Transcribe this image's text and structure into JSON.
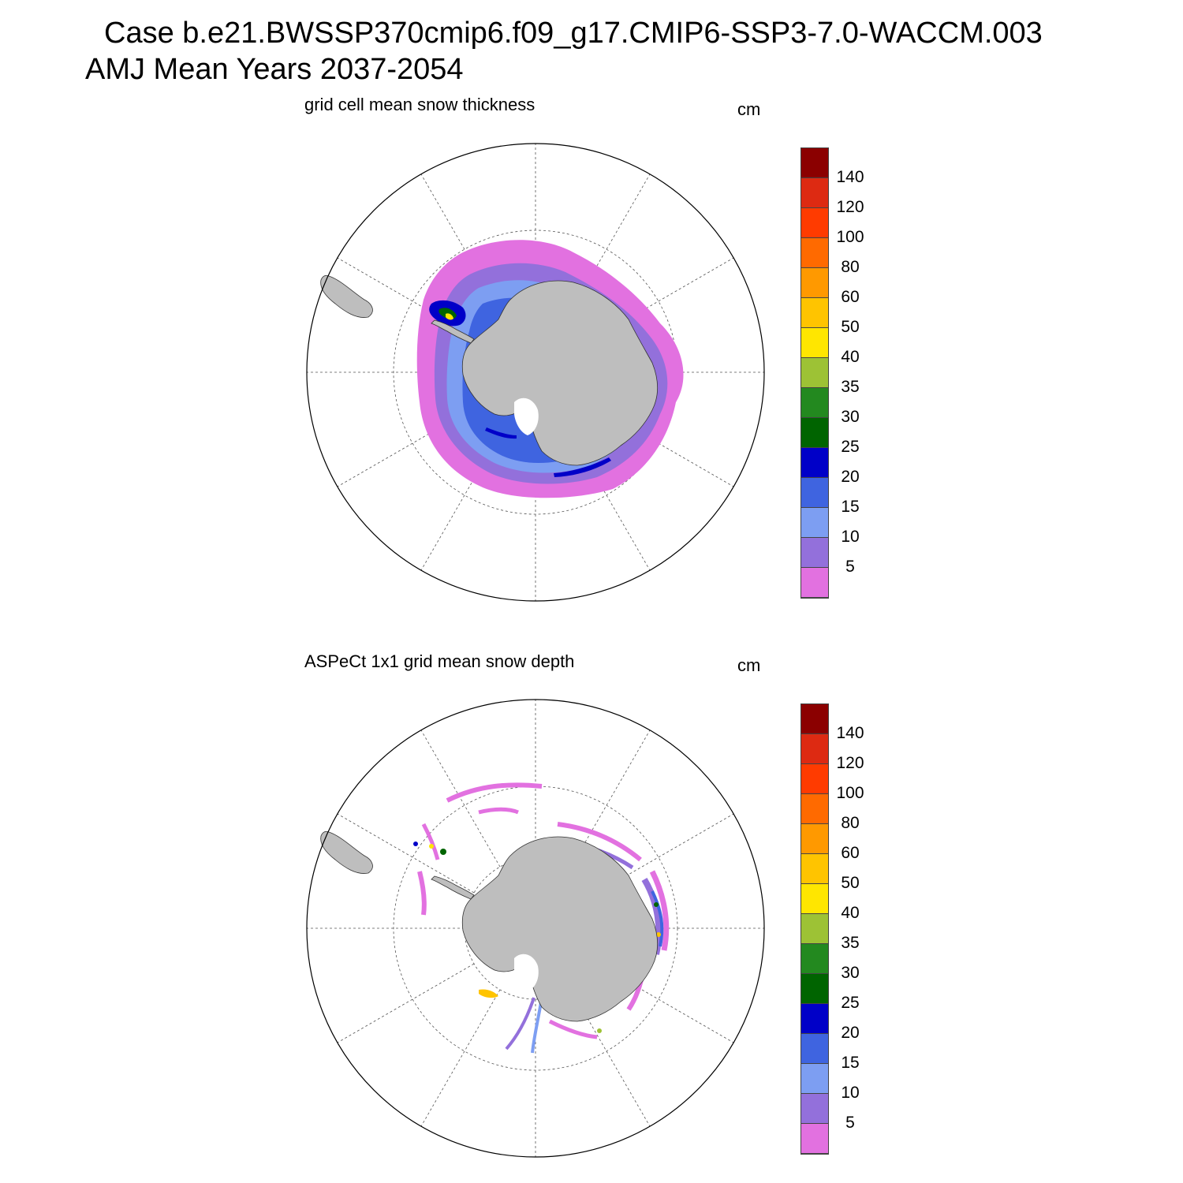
{
  "header": {
    "line1": "Case b.e21.BWSSP370cmip6.f09_g17.CMIP6-SSP3-7.0-WACCM.003",
    "line2": "AMJ Mean   Years 2037-2054"
  },
  "colorbar": {
    "labels": [
      "140",
      "120",
      "100",
      "80",
      "60",
      "50",
      "40",
      "35",
      "30",
      "25",
      "20",
      "15",
      "10",
      "5"
    ],
    "colors": [
      "#8B0000",
      "#DD2A12",
      "#FF3B00",
      "#FF6A00",
      "#FF9900",
      "#FFC400",
      "#FFE600",
      "#9DC235",
      "#23891F",
      "#006400",
      "#0000C8",
      "#3F64E0",
      "#7D9EF2",
      "#9370DB",
      "#E271E0"
    ]
  },
  "colors": {
    "land": "#BEBEBE",
    "grid": "#555555"
  },
  "panels": [
    {
      "title": "grid cell mean snow thickness",
      "units": "cm"
    },
    {
      "title": "ASPeCt 1x1 grid mean snow depth",
      "units": "cm"
    }
  ]
}
